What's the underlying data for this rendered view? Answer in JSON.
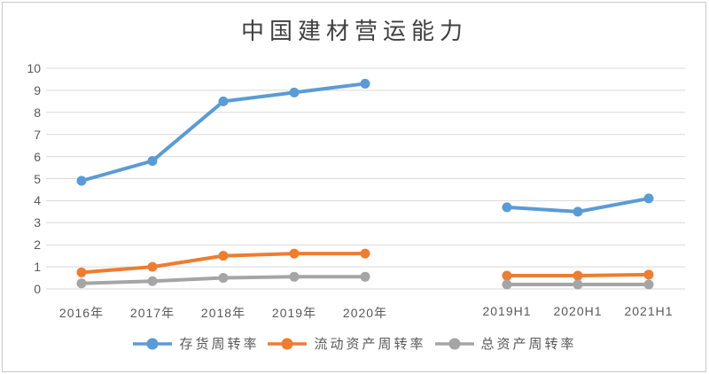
{
  "chart_data": {
    "type": "line",
    "title": "中国建材营运能力",
    "categories": [
      "2016年",
      "2017年",
      "2018年",
      "2019年",
      "2020年",
      "",
      "2019H1",
      "2020H1",
      "2021H1"
    ],
    "series": [
      {
        "name": "存货周转率",
        "color": "#5B9BD5",
        "values": [
          4.9,
          5.8,
          8.5,
          8.9,
          9.3,
          null,
          3.7,
          3.5,
          4.1
        ]
      },
      {
        "name": "流动资产周转率",
        "color": "#ED7D31",
        "values": [
          0.75,
          1.0,
          1.5,
          1.6,
          1.6,
          null,
          0.6,
          0.6,
          0.65
        ]
      },
      {
        "name": "总资产周转率",
        "color": "#A5A5A5",
        "values": [
          0.25,
          0.35,
          0.5,
          0.55,
          0.55,
          null,
          0.2,
          0.2,
          0.2
        ]
      }
    ],
    "ylim": [
      0,
      10
    ],
    "yticks": [
      0,
      1,
      2,
      3,
      4,
      5,
      6,
      7,
      8,
      9,
      10
    ],
    "grid": true,
    "legend_position": "bottom",
    "grid_color": "#D9D9D9",
    "axis_label_color": "#595959",
    "title_color": "#404040"
  }
}
